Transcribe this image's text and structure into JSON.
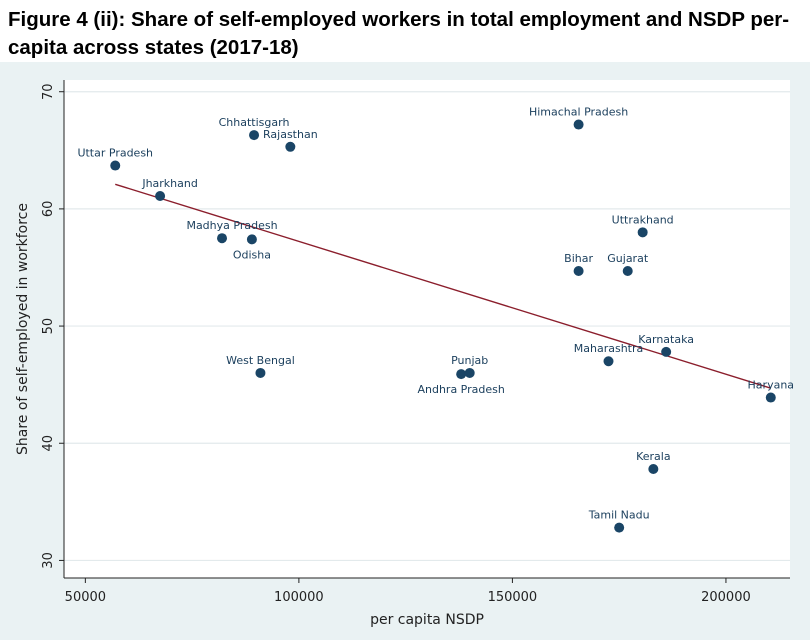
{
  "title": "Figure 4 (ii): Share of self-employed workers in total employment and NSDP per-capita across states (2017-18)",
  "colors": {
    "point": "#1a4566",
    "fit": "#8b1e2c",
    "panel": "#eaf2f3",
    "grid": "#e3eaec"
  },
  "chart_data": {
    "type": "scatter",
    "xlabel": "per capita NSDP",
    "ylabel": "Share of self-employed in workforce",
    "xlim": [
      45000,
      215000
    ],
    "ylim": [
      28.5,
      71
    ],
    "xticks": [
      50000,
      100000,
      150000,
      200000
    ],
    "yticks": [
      30,
      40,
      50,
      60,
      70
    ],
    "grid": true,
    "points": [
      {
        "label": "Uttar Pradesh",
        "x": 57000,
        "y": 63.7,
        "lpos": "above"
      },
      {
        "label": "Jharkhand",
        "x": 67500,
        "y": 61.1,
        "lpos": "above-right"
      },
      {
        "label": "Chhattisgarh",
        "x": 89500,
        "y": 66.3,
        "lpos": "above"
      },
      {
        "label": "Rajasthan",
        "x": 98000,
        "y": 65.3,
        "lpos": "above"
      },
      {
        "label": "Madhya Pradesh",
        "x": 82000,
        "y": 57.5,
        "lpos": "above-right"
      },
      {
        "label": "Odisha",
        "x": 89000,
        "y": 57.4,
        "lpos": "below"
      },
      {
        "label": "West Bengal",
        "x": 91000,
        "y": 46.0,
        "lpos": "above"
      },
      {
        "label": "Punjab",
        "x": 140000,
        "y": 46.0,
        "lpos": "above"
      },
      {
        "label": "Andhra Pradesh",
        "x": 138000,
        "y": 45.9,
        "lpos": "below"
      },
      {
        "label": "Himachal Pradesh",
        "x": 165500,
        "y": 67.2,
        "lpos": "above"
      },
      {
        "label": "Uttrakhand",
        "x": 180500,
        "y": 58.0,
        "lpos": "above"
      },
      {
        "label": "Bihar",
        "x": 165500,
        "y": 54.7,
        "lpos": "above"
      },
      {
        "label": "Gujarat",
        "x": 177000,
        "y": 54.7,
        "lpos": "above"
      },
      {
        "label": "Maharashtra",
        "x": 172500,
        "y": 47.0,
        "lpos": "above"
      },
      {
        "label": "Karnataka",
        "x": 186000,
        "y": 47.8,
        "lpos": "above"
      },
      {
        "label": "Haryana",
        "x": 210500,
        "y": 43.9,
        "lpos": "above"
      },
      {
        "label": "Kerala",
        "x": 183000,
        "y": 37.8,
        "lpos": "above"
      },
      {
        "label": "Tamil Nadu",
        "x": 175000,
        "y": 32.8,
        "lpos": "above"
      }
    ],
    "fit_line": {
      "x": [
        57000,
        210500
      ],
      "y": [
        62.1,
        44.7
      ]
    }
  }
}
